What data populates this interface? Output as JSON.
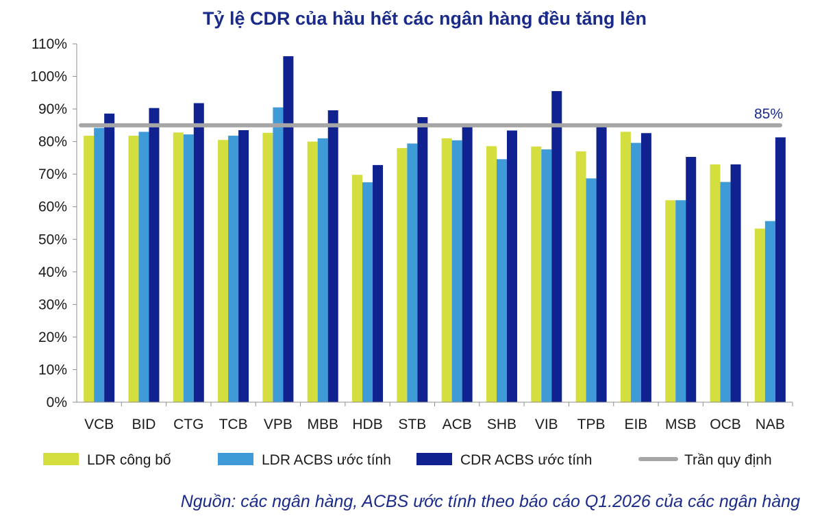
{
  "chart_data": {
    "type": "bar",
    "title": "Tỷ lệ CDR của hầu hết các ngân hàng đều tăng lên",
    "categories": [
      "VCB",
      "BID",
      "CTG",
      "TCB",
      "VPB",
      "MBB",
      "HDB",
      "STB",
      "ACB",
      "SHB",
      "VIB",
      "TPB",
      "EIB",
      "MSB",
      "OCB",
      "NAB"
    ],
    "series": [
      {
        "name": "LDR công bố",
        "color": "#d4de3f",
        "values": [
          81.8,
          81.8,
          82.8,
          80.5,
          82.7,
          80.0,
          69.8,
          78.0,
          81.0,
          78.6,
          78.5,
          77.0,
          83.0,
          62.0,
          73.0,
          53.3
        ]
      },
      {
        "name": "LDR ACBS ước tính",
        "color": "#3f9bd8",
        "values": [
          84.2,
          83.0,
          82.2,
          81.8,
          90.5,
          81.0,
          67.5,
          79.4,
          80.4,
          74.6,
          77.6,
          68.7,
          79.6,
          62.0,
          67.6,
          55.6
        ]
      },
      {
        "name": "CDR ACBS ước tính",
        "color": "#0f2290",
        "values": [
          88.6,
          90.3,
          91.8,
          83.5,
          106.2,
          89.6,
          72.8,
          87.5,
          85.0,
          83.4,
          95.5,
          85.0,
          82.6,
          75.3,
          73.0,
          81.3
        ]
      }
    ],
    "reference_line": {
      "name": "Trần quy định",
      "value": 85,
      "label": "85%",
      "color": "#a6a6a6"
    },
    "y_ticks": [
      "0%",
      "10%",
      "20%",
      "30%",
      "40%",
      "50%",
      "60%",
      "70%",
      "80%",
      "90%",
      "100%",
      "110%"
    ],
    "ylim": [
      0,
      110
    ],
    "grid": false,
    "legend": "bottom",
    "xlabel": "",
    "ylabel": ""
  },
  "source_note": "Nguồn: các ngân hàng, ACBS ước tính theo báo cáo Q1.2026 của các ngân hàng"
}
